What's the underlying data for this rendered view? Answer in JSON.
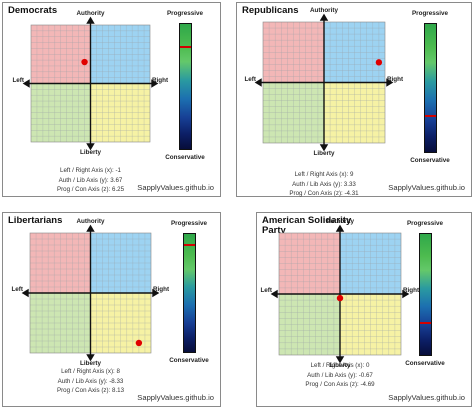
{
  "axes": {
    "authority": "Authority",
    "liberty": "Liberty",
    "left": "Left",
    "right": "Right",
    "progressive": "Progressive",
    "conservative": "Conservative"
  },
  "stat_labels": {
    "x": "Left / Right Axis (x):",
    "y": "Auth / Lib Axis (y):",
    "z": "Prog / Con Axis (z):"
  },
  "site": "SapplyValues.github.io",
  "colors": {
    "auth_left": "#f3b7b7",
    "auth_right": "#9dd3f2",
    "lib_left": "#cde6b2",
    "lib_right": "#f6f2a4",
    "dot": "#e00000",
    "marker": "#d40000"
  },
  "panels": [
    {
      "title": "Democrats",
      "x": "-1",
      "y": "3.67",
      "z": "6.25"
    },
    {
      "title": "Republicans",
      "x": "9",
      "y": "3.33",
      "z": "-4.31"
    },
    {
      "title": "Libertarians",
      "x": "8",
      "y": "-8.33",
      "z": "8.13"
    },
    {
      "title": "American Solidarity Party",
      "x": "0",
      "y": "-0.67",
      "z": "-4.69"
    }
  ]
}
